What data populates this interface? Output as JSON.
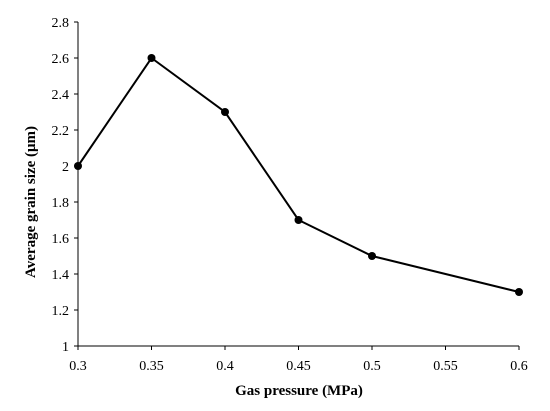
{
  "chart_data": {
    "type": "line",
    "xlabel": "Gas pressure (MPa)",
    "ylabel": "Average grain size (μm)",
    "xlim": [
      0.3,
      0.6
    ],
    "ylim": [
      1,
      2.8
    ],
    "x_ticks": [
      "0.3",
      "0.35",
      "0.4",
      "0.45",
      "0.5",
      "0.55",
      "0.6"
    ],
    "y_ticks": [
      "1",
      "1.2",
      "1.4",
      "1.6",
      "1.8",
      "2",
      "2.2",
      "2.4",
      "2.6",
      "2.8"
    ],
    "grid": false,
    "legend": "none",
    "series": [
      {
        "x": [
          0.3,
          0.35,
          0.4,
          0.45,
          0.5,
          0.6
        ],
        "y": [
          2.0,
          2.6,
          2.3,
          1.7,
          1.5,
          1.3
        ],
        "color": "#000000",
        "marker": "circle"
      }
    ]
  }
}
